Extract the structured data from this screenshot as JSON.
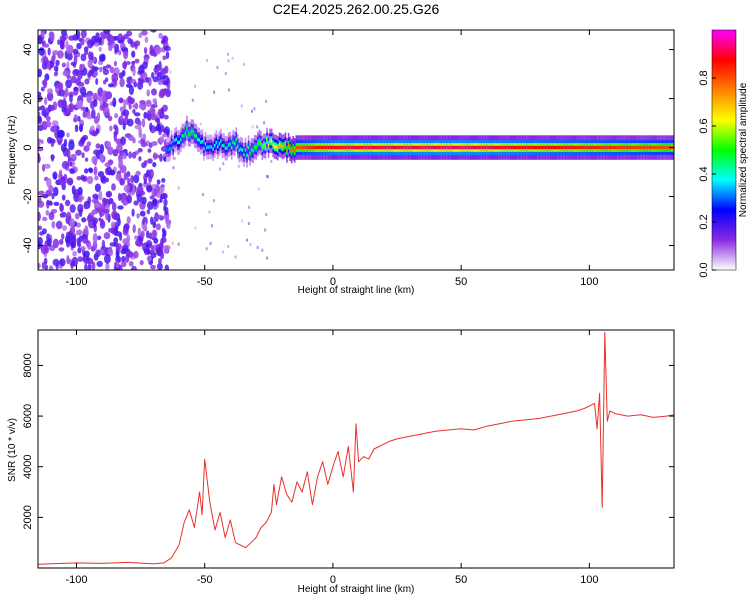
{
  "title": "C2E4.2025.262.00.25.G26",
  "chart_data": [
    {
      "type": "heatmap",
      "xlabel": "Height of straight line (km)",
      "ylabel": "Frequency (Hz)",
      "xlim": [
        -115,
        133
      ],
      "ylim": [
        -50,
        48
      ],
      "xticks": [
        -100,
        -50,
        0,
        50,
        100
      ],
      "yticks": [
        -40,
        -20,
        0,
        20,
        40
      ],
      "colorbar": {
        "label": "Normalized spectral amplitude",
        "range": [
          0,
          1
        ],
        "ticks": [
          0.0,
          0.2,
          0.4,
          0.6,
          0.8
        ],
        "colors": [
          "#ffffff",
          "#8a2be2",
          "#0000ff",
          "#00ffff",
          "#00ff00",
          "#ffff00",
          "#ff8000",
          "#ff0000",
          "#ff00ff"
        ]
      },
      "noise_region": {
        "x_from": -115,
        "x_to": -64
      },
      "ridge": {
        "x": [
          -65,
          -60,
          -57,
          -55,
          -52,
          -48,
          -45,
          -42,
          -38,
          -35,
          -30,
          -25,
          -20,
          -15,
          0,
          50,
          100,
          133
        ],
        "y": [
          0,
          3,
          7,
          6,
          2,
          -1,
          2,
          0,
          2,
          -3,
          1,
          2,
          0,
          0,
          0,
          0,
          0,
          0
        ],
        "amplitude": [
          0.3,
          0.4,
          0.5,
          0.5,
          0.4,
          0.35,
          0.4,
          0.4,
          0.45,
          0.4,
          0.5,
          0.6,
          0.7,
          0.8,
          0.9,
          0.92,
          0.85,
          0.8
        ]
      }
    },
    {
      "type": "line",
      "xlabel": "Height of straight line (km)",
      "ylabel": "SNR (10 * v/v)",
      "xlim": [
        -115,
        133
      ],
      "ylim": [
        0,
        9400
      ],
      "xticks": [
        -100,
        -50,
        0,
        50,
        100
      ],
      "yticks": [
        2000,
        4000,
        6000,
        8000
      ],
      "color": "#e8312a",
      "series": [
        {
          "x": [
            -115,
            -100,
            -90,
            -80,
            -70,
            -66,
            -63,
            -60,
            -58,
            -56,
            -54,
            -52,
            -51,
            -50,
            -48,
            -46,
            -44,
            -42,
            -40,
            -38,
            -36,
            -34,
            -32,
            -30,
            -28,
            -26,
            -24,
            -23,
            -22,
            -20,
            -18,
            -16,
            -14,
            -12,
            -10,
            -8,
            -6,
            -4,
            -2,
            0,
            2,
            4,
            6,
            8,
            9,
            10,
            12,
            14,
            16,
            18,
            20,
            22,
            25,
            30,
            35,
            40,
            45,
            50,
            55,
            60,
            65,
            70,
            75,
            80,
            85,
            90,
            95,
            98,
            100,
            102,
            103,
            104,
            105,
            106,
            107,
            108,
            110,
            115,
            120,
            125,
            130,
            133
          ],
          "y": [
            150,
            200,
            180,
            220,
            160,
            200,
            400,
            900,
            1800,
            2300,
            1600,
            3000,
            2100,
            4300,
            2600,
            1500,
            2200,
            1200,
            1900,
            1000,
            900,
            800,
            1000,
            1200,
            1600,
            1800,
            2200,
            3300,
            2500,
            3600,
            2900,
            2600,
            3400,
            3000,
            3800,
            2500,
            3600,
            4200,
            3300,
            4000,
            4600,
            3600,
            4800,
            3000,
            5700,
            4200,
            4400,
            4300,
            4700,
            4800,
            4900,
            5000,
            5100,
            5200,
            5300,
            5400,
            5450,
            5500,
            5450,
            5600,
            5700,
            5800,
            5850,
            5900,
            6000,
            6100,
            6200,
            6300,
            6400,
            6500,
            5500,
            6900,
            2400,
            9300,
            5800,
            6200,
            6100,
            6000,
            6050,
            5950,
            6000,
            6050
          ]
        }
      ]
    }
  ]
}
